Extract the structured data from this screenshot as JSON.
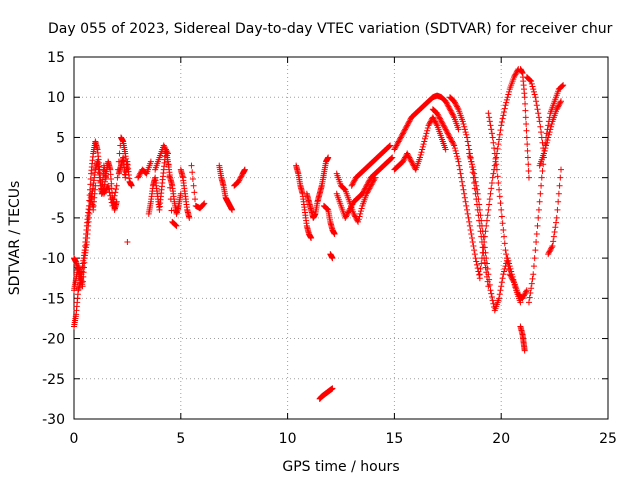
{
  "chart_data": {
    "type": "scatter",
    "title": "Day 055 of 2023, Sidereal Day-to-day VTEC variation (SDTVAR) for receiver chur",
    "xlabel": "GPS time / hours",
    "ylabel": "SDTVAR / TECUs",
    "xlim": [
      0,
      25
    ],
    "ylim": [
      -30,
      15
    ],
    "xticks": [
      0,
      5,
      10,
      15,
      20,
      25
    ],
    "yticks": [
      -30,
      -25,
      -20,
      -15,
      -10,
      -5,
      0,
      5,
      10,
      15
    ],
    "grid": true,
    "marker": "+",
    "color": "#ff0000",
    "series": [
      {
        "name": "SDTVAR",
        "segments": [
          {
            "x": [
              0.0,
              0.1,
              0.2,
              0.3,
              0.4,
              0.5,
              0.6,
              0.7,
              0.8,
              0.9,
              1.0,
              1.1,
              1.2,
              1.3,
              1.4,
              1.5
            ],
            "y": [
              -18.5,
              -17.0,
              -14.0,
              -13.0,
              -11.0,
              -9.0,
              -6.0,
              -3.5,
              0.5,
              3.0,
              4.5,
              3.5,
              1.0,
              -2.0,
              1.5,
              0.0
            ]
          },
          {
            "x": [
              0.0,
              0.1,
              0.2,
              0.3,
              0.4,
              0.5,
              0.6,
              0.7,
              0.8,
              0.9,
              1.0
            ],
            "y": [
              -14.0,
              -12.5,
              -11.0,
              -12.0,
              -13.5,
              -10.0,
              -8.0,
              -5.0,
              -2.0,
              -4.0,
              -1.0
            ]
          },
          {
            "x": [
              0.0,
              0.1,
              0.2,
              0.3
            ],
            "y": [
              -10.0,
              -10.5,
              -11.5,
              -13.0
            ]
          },
          {
            "x": [
              0.8,
              0.9,
              1.0,
              1.1,
              1.2,
              1.3,
              1.4,
              1.5,
              1.6,
              1.7,
              1.8,
              1.9,
              2.0
            ],
            "y": [
              -3.0,
              -1.0,
              1.0,
              2.0,
              0.0,
              -2.0,
              -1.5,
              0.5,
              2.0,
              1.0,
              -2.5,
              -4.0,
              -3.0
            ]
          },
          {
            "x": [
              1.4,
              1.6,
              1.8,
              2.0,
              2.2,
              2.3,
              2.4,
              2.5
            ],
            "y": [
              -2.0,
              -1.0,
              -3.5,
              -1.0,
              5.0,
              4.5,
              3.0,
              1.0
            ]
          },
          {
            "x": [
              2.1,
              2.2,
              2.3,
              2.4,
              2.5,
              2.6,
              2.7
            ],
            "y": [
              0.5,
              1.5,
              2.5,
              0.0,
              2.0,
              -0.5,
              -1.0
            ]
          },
          {
            "x": [
              2.5
            ],
            "y": [
              -8.0
            ]
          },
          {
            "x": [
              3.0,
              3.2,
              3.4,
              3.6
            ],
            "y": [
              0.0,
              1.0,
              0.5,
              2.0
            ]
          },
          {
            "x": [
              3.5,
              3.6,
              3.7,
              3.8,
              3.9,
              4.0,
              4.1,
              4.2,
              4.3,
              4.4,
              4.5,
              4.6,
              4.7,
              4.8,
              4.9,
              5.0
            ],
            "y": [
              -4.5,
              -3.0,
              -1.0,
              0.0,
              -2.0,
              -4.0,
              -1.5,
              1.0,
              3.5,
              2.0,
              0.0,
              -1.0,
              -3.0,
              -4.5,
              -3.5,
              -2.0
            ]
          },
          {
            "x": [
              3.8,
              4.0,
              4.2,
              4.4,
              4.6,
              4.8
            ],
            "y": [
              1.0,
              2.5,
              4.0,
              3.0,
              -5.5,
              -6.0
            ]
          },
          {
            "x": [
              5.0,
              5.1,
              5.2,
              5.3,
              5.4
            ],
            "y": [
              1.0,
              0.0,
              -2.0,
              -4.0,
              -5.0
            ]
          },
          {
            "x": [
              5.5,
              5.7,
              5.9,
              6.1
            ],
            "y": [
              1.5,
              -3.5,
              -3.8,
              -3.2
            ]
          },
          {
            "x": [
              6.8,
              6.9,
              7.0,
              7.1,
              7.2,
              7.3,
              7.4
            ],
            "y": [
              1.5,
              0.0,
              -1.0,
              -2.5,
              -3.0,
              -3.5,
              -4.0
            ]
          },
          {
            "x": [
              7.5,
              7.7,
              7.9,
              8.0
            ],
            "y": [
              -1.0,
              -0.5,
              0.5,
              1.0
            ]
          },
          {
            "x": [
              10.4,
              10.5,
              10.6,
              10.7,
              10.8,
              10.9,
              11.0,
              11.1
            ],
            "y": [
              1.5,
              0.5,
              -1.0,
              -2.0,
              -4.0,
              -6.0,
              -7.0,
              -7.5
            ]
          },
          {
            "x": [
              10.9,
              11.0,
              11.1,
              11.2,
              11.3,
              11.4,
              11.5,
              11.6,
              11.7,
              11.8,
              11.9
            ],
            "y": [
              -2.0,
              -3.0,
              -4.0,
              -5.0,
              -4.5,
              -3.0,
              -2.0,
              -1.0,
              0.5,
              2.0,
              2.5
            ]
          },
          {
            "x": [
              11.5,
              11.6,
              11.7,
              11.8,
              11.9,
              12.0,
              12.1
            ],
            "y": [
              -27.5,
              -27.2,
              -27.0,
              -26.8,
              -26.6,
              -26.4,
              -26.2
            ]
          },
          {
            "x": [
              11.7,
              11.9,
              12.0,
              12.1,
              12.2
            ],
            "y": [
              -3.5,
              -4.0,
              -5.5,
              -6.5,
              -7.0
            ]
          },
          {
            "x": [
              12.0,
              12.1
            ],
            "y": [
              -9.5,
              -10.0
            ]
          },
          {
            "x": [
              12.3,
              12.5,
              12.7,
              12.9,
              13.1,
              13.3,
              13.5,
              13.7,
              13.9,
              14.1,
              14.3,
              14.5,
              14.7,
              14.9
            ],
            "y": [
              -2.0,
              -3.5,
              -5.0,
              -4.0,
              -3.0,
              -2.5,
              -2.0,
              -1.0,
              0.0,
              0.5,
              1.0,
              1.5,
              2.0,
              2.5
            ]
          },
          {
            "x": [
              12.3,
              12.5,
              12.7,
              12.9,
              13.1,
              13.3,
              13.5,
              13.7,
              13.9,
              14.1
            ],
            "y": [
              0.5,
              -1.0,
              -1.5,
              -3.0,
              -4.5,
              -5.5,
              -3.5,
              -2.0,
              -1.0,
              0.0
            ]
          },
          {
            "x": [
              13.0,
              13.2,
              13.4,
              13.6,
              13.8,
              14.0,
              14.2,
              14.4,
              14.6,
              14.8
            ],
            "y": [
              -1.0,
              0.0,
              0.5,
              1.0,
              1.5,
              2.0,
              2.5,
              3.0,
              3.5,
              4.0
            ]
          },
          {
            "x": [
              15.0,
              15.2,
              15.4,
              15.6,
              15.8,
              16.0,
              16.2,
              16.4,
              16.6,
              16.8,
              17.0,
              17.2,
              17.4,
              17.6,
              17.8,
              18.0
            ],
            "y": [
              3.5,
              4.5,
              5.5,
              6.5,
              7.5,
              8.0,
              8.5,
              9.0,
              9.5,
              10.0,
              10.2,
              10.0,
              9.5,
              8.5,
              7.5,
              6.0
            ]
          },
          {
            "x": [
              15.0,
              15.2,
              15.4,
              15.6,
              15.8,
              16.0,
              16.2,
              16.4,
              16.6,
              16.8,
              17.0,
              17.2,
              17.4
            ],
            "y": [
              1.0,
              1.5,
              2.0,
              3.0,
              2.0,
              1.0,
              2.5,
              4.5,
              6.5,
              7.5,
              6.5,
              5.0,
              3.5
            ]
          },
          {
            "x": [
              16.8,
              17.0,
              17.2,
              17.4,
              17.6,
              17.8,
              18.0,
              18.2,
              18.4,
              18.6,
              18.8,
              19.0
            ],
            "y": [
              8.5,
              8.0,
              7.0,
              6.0,
              5.0,
              4.0,
              2.0,
              -1.0,
              -4.0,
              -7.0,
              -10.0,
              -12.5
            ]
          },
          {
            "x": [
              17.6,
              17.8,
              18.0,
              18.2,
              18.4,
              18.6,
              18.8,
              19.0,
              19.2,
              19.4
            ],
            "y": [
              10.0,
              9.5,
              8.5,
              7.0,
              5.0,
              2.0,
              -2.0,
              -6.0,
              -10.0,
              -13.5
            ]
          },
          {
            "x": [
              18.5,
              18.7,
              18.9,
              19.1,
              19.3,
              19.5,
              19.7,
              19.9,
              20.1,
              20.3,
              20.5,
              20.7,
              20.9
            ],
            "y": [
              3.0,
              1.0,
              -2.0,
              -6.0,
              -10.0,
              -14.0,
              -16.5,
              -15.0,
              -12.0,
              -10.0,
              -12.0,
              -14.0,
              -15.5
            ]
          },
          {
            "x": [
              19.0,
              19.2,
              19.4,
              19.6,
              19.8,
              20.0,
              20.2,
              20.4,
              20.6,
              20.8
            ],
            "y": [
              -12.0,
              -8.0,
              -4.0,
              0.0,
              3.0,
              6.5,
              9.0,
              11.0,
              12.5,
              13.5
            ]
          },
          {
            "x": [
              19.4,
              19.6,
              19.8,
              20.0,
              20.2,
              20.4,
              20.6,
              20.8,
              21.0,
              21.2
            ],
            "y": [
              8.0,
              5.0,
              1.0,
              -4.0,
              -9.0,
              -12.0,
              -13.0,
              -14.5,
              -15.0,
              -14.0
            ]
          },
          {
            "x": [
              20.9,
              21.0,
              21.1,
              21.2,
              21.3
            ],
            "y": [
              13.5,
              13.0,
              10.0,
              5.0,
              0.0
            ]
          },
          {
            "x": [
              20.9,
              21.0,
              21.05,
              21.1
            ],
            "y": [
              -18.5,
              -19.5,
              -20.5,
              -21.5
            ]
          },
          {
            "x": [
              21.2,
              21.4,
              21.6,
              21.8,
              22.0
            ],
            "y": [
              12.5,
              12.0,
              10.0,
              7.0,
              3.0
            ]
          },
          {
            "x": [
              21.3,
              21.5,
              21.7,
              21.9,
              22.1,
              22.3,
              22.5,
              22.7,
              22.9
            ],
            "y": [
              -15.5,
              -12.0,
              -6.0,
              0.0,
              5.0,
              8.0,
              9.5,
              11.0,
              11.5
            ]
          },
          {
            "x": [
              21.8,
              22.0,
              22.2,
              22.4,
              22.6,
              22.8
            ],
            "y": [
              1.5,
              3.0,
              5.0,
              7.0,
              8.5,
              9.5
            ]
          },
          {
            "x": [
              22.2,
              22.4,
              22.6,
              22.8
            ],
            "y": [
              -9.5,
              -8.5,
              -5.0,
              1.0
            ]
          }
        ]
      }
    ]
  }
}
